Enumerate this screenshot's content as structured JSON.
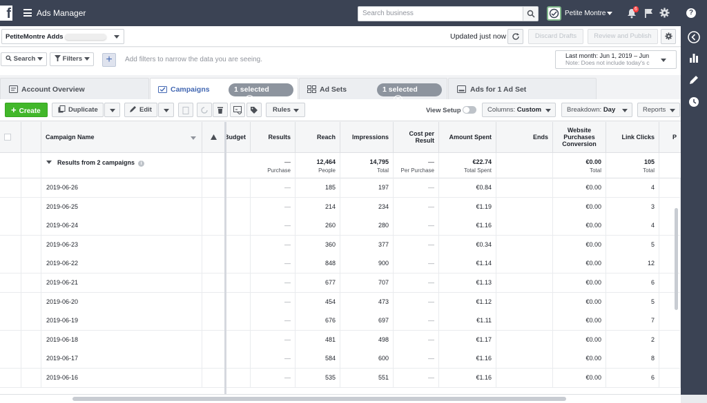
{
  "topbar": {
    "logo": "f",
    "app_title": "Ads Manager",
    "search_placeholder": "Search business",
    "account_name": "Petite Montre",
    "notification_count": "6",
    "help": "?"
  },
  "account_bar": {
    "account_label": "PetiteMontre Adds",
    "updated_text": "Updated just now",
    "discard_label": "Discard Drafts",
    "review_label": "Review and Publish"
  },
  "filter_bar": {
    "search_label": "Search",
    "filters_label": "Filters",
    "add_label": "+",
    "hint": "Add filters to narrow the data you are seeing.",
    "date_range": "Last month: Jun 1, 2019 – Jun",
    "date_note": "Note: Does not include today's c"
  },
  "tabs": [
    {
      "label": "Account Overview"
    },
    {
      "label": "Campaigns",
      "pill": "1 selected"
    },
    {
      "label": "Ad Sets",
      "pill": "1 selected"
    },
    {
      "label": "Ads for 1 Ad Set"
    }
  ],
  "actions": {
    "create": "Create",
    "duplicate": "Duplicate",
    "edit": "Edit",
    "rules": "Rules",
    "view_setup": "View Setup",
    "columns_prefix": "Columns:",
    "columns_value": "Custom",
    "breakdown_prefix": "Breakdown:",
    "breakdown_value": "Day",
    "reports": "Reports"
  },
  "columns": {
    "campaign_name": "Campaign Name",
    "budget": "Budget",
    "results": "Results",
    "reach": "Reach",
    "impressions": "Impressions",
    "cost_per_result": "Cost per Result",
    "amount_spent": "Amount Spent",
    "ends": "Ends",
    "website_purchases": "Website Purchases Conversion",
    "link_clicks": "Link Clicks",
    "next": "P"
  },
  "summary": {
    "label": "Results from 2 campaigns",
    "results": "—",
    "results_sub": "Purchase",
    "reach": "12,464",
    "reach_sub": "People",
    "impressions": "14,795",
    "impressions_sub": "Total",
    "cost": "—",
    "cost_sub": "Per Purchase",
    "amount": "€22.74",
    "amount_sub": "Total Spent",
    "purchases": "€0.00",
    "purchases_sub": "Total",
    "clicks": "105",
    "clicks_sub": "Total"
  },
  "rows": [
    {
      "date": "2019-06-26",
      "results": "—",
      "reach": "185",
      "impressions": "197",
      "cost": "—",
      "amount": "€0.84",
      "purchases": "€0.00",
      "clicks": "4"
    },
    {
      "date": "2019-06-25",
      "results": "—",
      "reach": "214",
      "impressions": "234",
      "cost": "—",
      "amount": "€1.19",
      "purchases": "€0.00",
      "clicks": "3"
    },
    {
      "date": "2019-06-24",
      "results": "—",
      "reach": "260",
      "impressions": "280",
      "cost": "—",
      "amount": "€1.16",
      "purchases": "€0.00",
      "clicks": "4"
    },
    {
      "date": "2019-06-23",
      "results": "—",
      "reach": "360",
      "impressions": "377",
      "cost": "—",
      "amount": "€0.34",
      "purchases": "€0.00",
      "clicks": "5"
    },
    {
      "date": "2019-06-22",
      "results": "—",
      "reach": "848",
      "impressions": "900",
      "cost": "—",
      "amount": "€1.14",
      "purchases": "€0.00",
      "clicks": "12"
    },
    {
      "date": "2019-06-21",
      "results": "—",
      "reach": "677",
      "impressions": "707",
      "cost": "—",
      "amount": "€1.13",
      "purchases": "€0.00",
      "clicks": "6"
    },
    {
      "date": "2019-06-20",
      "results": "—",
      "reach": "454",
      "impressions": "473",
      "cost": "—",
      "amount": "€1.12",
      "purchases": "€0.00",
      "clicks": "5"
    },
    {
      "date": "2019-06-19",
      "results": "—",
      "reach": "676",
      "impressions": "697",
      "cost": "—",
      "amount": "€1.11",
      "purchases": "€0.00",
      "clicks": "7"
    },
    {
      "date": "2019-06-18",
      "results": "—",
      "reach": "481",
      "impressions": "498",
      "cost": "—",
      "amount": "€1.17",
      "purchases": "€0.00",
      "clicks": "2"
    },
    {
      "date": "2019-06-17",
      "results": "—",
      "reach": "584",
      "impressions": "600",
      "cost": "—",
      "amount": "€1.16",
      "purchases": "€0.00",
      "clicks": "8"
    },
    {
      "date": "2019-06-16",
      "results": "—",
      "reach": "535",
      "impressions": "551",
      "cost": "—",
      "amount": "€1.16",
      "purchases": "€0.00",
      "clicks": "6"
    }
  ],
  "colors": {
    "topbar": "#3b4354",
    "accent": "#4267b2",
    "create": "#42b72a"
  }
}
